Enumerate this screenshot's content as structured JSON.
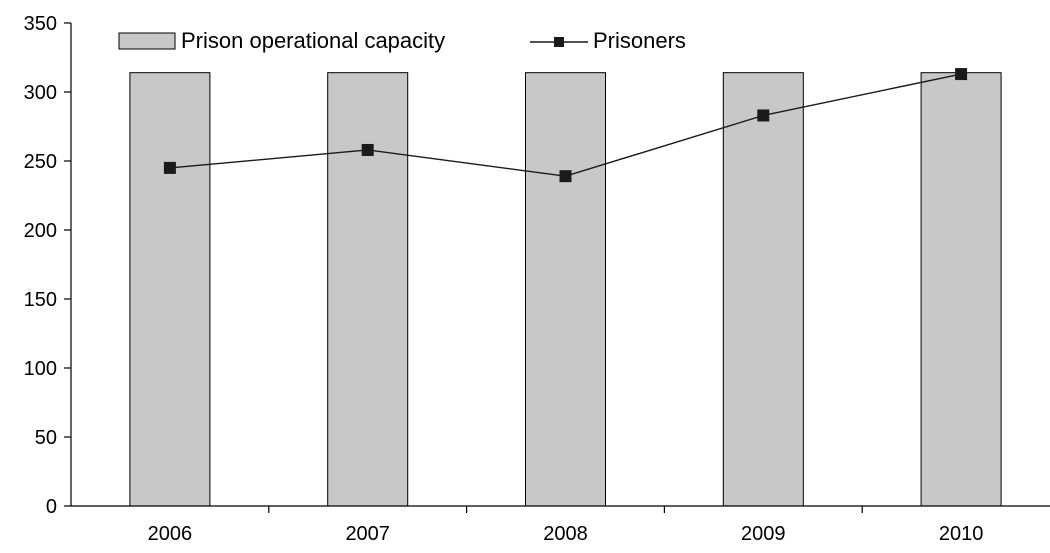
{
  "chart_data": {
    "type": "bar",
    "categories": [
      "2006",
      "2007",
      "2008",
      "2009",
      "2010"
    ],
    "series": [
      {
        "name": "Prison operational capacity",
        "type": "bar",
        "values": [
          314,
          314,
          314,
          314,
          314
        ],
        "color": "#c8c8c8"
      },
      {
        "name": "Prisoners",
        "type": "line",
        "values": [
          245,
          258,
          239,
          283,
          313
        ],
        "color": "#1a1a1a"
      }
    ],
    "title": "",
    "xlabel": "",
    "ylabel": "",
    "ylim": [
      0,
      350
    ],
    "yticks": [
      0,
      50,
      100,
      150,
      200,
      250,
      300,
      350
    ],
    "grid": false,
    "legend_position": "top"
  }
}
